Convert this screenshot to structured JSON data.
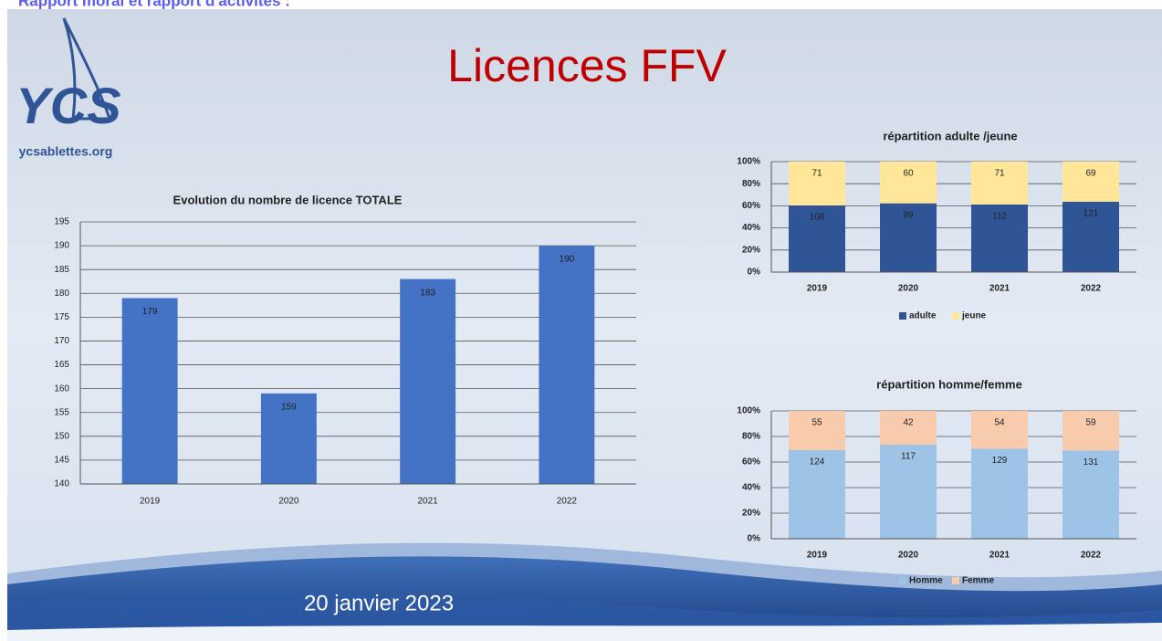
{
  "header": "Rapport moral et rapport d'activités :",
  "slide_title": "Licences FFV",
  "date": "20 janvier 2023",
  "logo": {
    "mark": "YCS",
    "site": "ycsablettes.org"
  },
  "chart_data": [
    {
      "type": "bar",
      "title": "Evolution du nombre de licence TOTALE",
      "categories": [
        "2019",
        "2020",
        "2021",
        "2022"
      ],
      "values": [
        179,
        159,
        183,
        190
      ],
      "color": "#4472c4",
      "ylim": [
        140,
        195
      ],
      "yticks": [
        140,
        145,
        150,
        155,
        160,
        165,
        170,
        175,
        180,
        185,
        190,
        195
      ],
      "grid": true
    },
    {
      "type": "bar",
      "stacking": "percent",
      "title": "répartition adulte /jeune",
      "categories": [
        "2019",
        "2020",
        "2021",
        "2022"
      ],
      "series": [
        {
          "name": "adulte",
          "color": "#2f5597",
          "values": [
            108,
            99,
            112,
            121
          ]
        },
        {
          "name": "jeune",
          "color": "#ffe699",
          "values": [
            71,
            60,
            71,
            69
          ]
        }
      ],
      "ylim": [
        0,
        100
      ],
      "yticks": [
        {
          "value": 0,
          "label": "0%"
        },
        {
          "value": 20,
          "label": "20%"
        },
        {
          "value": 40,
          "label": "40%"
        },
        {
          "value": 60,
          "label": "60%"
        },
        {
          "value": 80,
          "label": "80%"
        },
        {
          "value": 100,
          "label": "100%"
        }
      ],
      "grid": true,
      "legend": "bottom"
    },
    {
      "type": "bar",
      "stacking": "percent",
      "title": "répartition homme/femme",
      "categories": [
        "2019",
        "2020",
        "2021",
        "2022"
      ],
      "series": [
        {
          "name": "Homme",
          "color": "#9dc3e6",
          "values": [
            124,
            117,
            129,
            131
          ]
        },
        {
          "name": "Femme",
          "color": "#f8cbad",
          "values": [
            55,
            42,
            54,
            59
          ]
        }
      ],
      "ylim": [
        0,
        100
      ],
      "yticks": [
        {
          "value": 0,
          "label": "0%"
        },
        {
          "value": 20,
          "label": "20%"
        },
        {
          "value": 40,
          "label": "40%"
        },
        {
          "value": 60,
          "label": "60%"
        },
        {
          "value": 80,
          "label": "80%"
        },
        {
          "value": 100,
          "label": "100%"
        }
      ],
      "grid": true,
      "legend": "bottom"
    }
  ]
}
